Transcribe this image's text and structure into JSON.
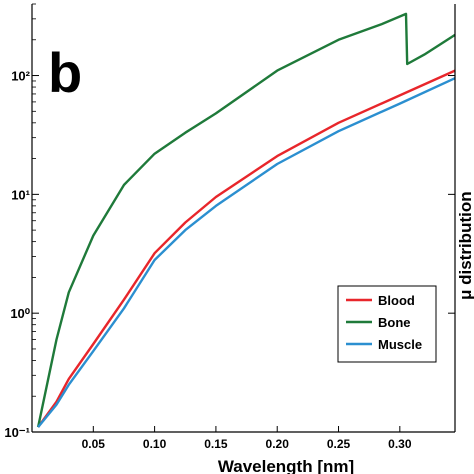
{
  "panel_label": "b",
  "right_axis_label": "μ distribution",
  "colors": {
    "blood": "#e8262b",
    "bone": "#1f7a3a",
    "muscle": "#2b8fd0",
    "axis": "#000000"
  },
  "chart_data": {
    "type": "line",
    "title": "",
    "xlabel": "Wavelength  [nm]",
    "ylabel": "",
    "yscale": "log",
    "xlim": [
      0.0,
      0.345
    ],
    "ylim": [
      0.1,
      400
    ],
    "x_ticks": [
      0.05,
      0.1,
      0.15,
      0.2,
      0.25,
      0.3
    ],
    "x_tick_labels": [
      "0.05",
      "0.10",
      "0.15",
      "0.20",
      "0.25",
      "0.30"
    ],
    "y_ticks": [
      0.1,
      1,
      10,
      100
    ],
    "y_tick_labels": [
      "10⁻¹",
      "10⁰",
      "10¹",
      "10²"
    ],
    "legend_position": "lower-right",
    "series": [
      {
        "name": "Blood",
        "color": "#e8262b",
        "x": [
          0.005,
          0.02,
          0.03,
          0.05,
          0.075,
          0.1,
          0.125,
          0.15,
          0.2,
          0.25,
          0.3,
          0.345
        ],
        "y": [
          0.11,
          0.18,
          0.28,
          0.55,
          1.3,
          3.2,
          5.8,
          9.5,
          21,
          40,
          68,
          110
        ]
      },
      {
        "name": "Bone",
        "color": "#1f7a3a",
        "x": [
          0.005,
          0.02,
          0.03,
          0.05,
          0.075,
          0.1,
          0.125,
          0.15,
          0.2,
          0.25,
          0.285,
          0.305,
          0.306,
          0.32,
          0.345
        ],
        "y": [
          0.11,
          0.6,
          1.5,
          4.5,
          12,
          22,
          33,
          48,
          110,
          200,
          270,
          330,
          125,
          150,
          220
        ]
      },
      {
        "name": "Muscle",
        "color": "#2b8fd0",
        "x": [
          0.005,
          0.02,
          0.03,
          0.05,
          0.075,
          0.1,
          0.125,
          0.15,
          0.2,
          0.25,
          0.3,
          0.345
        ],
        "y": [
          0.11,
          0.17,
          0.25,
          0.48,
          1.1,
          2.8,
          5.0,
          8.0,
          18,
          34,
          58,
          95
        ]
      }
    ]
  }
}
